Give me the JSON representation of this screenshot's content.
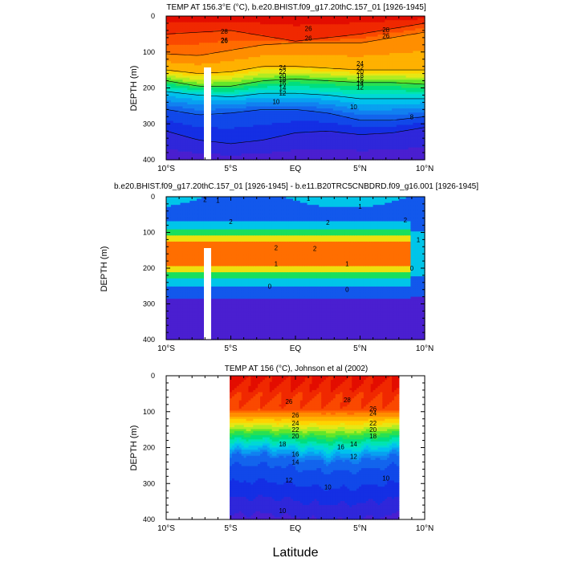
{
  "figure": {
    "shared_xlabel": "Latitude"
  },
  "colors": {
    "warm_top": "#e00000",
    "cold_bottom": "#4a1fd0",
    "diff_low": "#00f0e0",
    "diff_high": "#f59a3a",
    "background": "#ffffff"
  },
  "chart_data": [
    {
      "type": "contour",
      "title": "TEMP AT 156.3°E (°C), b.e20.BHIST.f09_g17.20thC.157_01 [1926-1945]",
      "xlabel": "",
      "ylabel": "DEPTH (m)",
      "xlim": [
        -10,
        10
      ],
      "ylim": [
        0,
        400
      ],
      "x_ticks": [
        -10,
        -5,
        0,
        5,
        10
      ],
      "x_tick_labels": [
        "10°S",
        "5°S",
        "EQ",
        "5°N",
        "10°N"
      ],
      "y_ticks": [
        0,
        100,
        200,
        300,
        400
      ],
      "y_tick_labels": [
        "0",
        "100",
        "200",
        "300",
        "400"
      ],
      "contour_interval": 1,
      "value_range": [
        8,
        29.5
      ],
      "lat_samples": [
        -10,
        -7.5,
        -5,
        -2.5,
        0,
        2.5,
        5,
        7.5,
        10
      ],
      "isotherm_depths": {
        "28": [
          50,
          45,
          40,
          55,
          70,
          60,
          50,
          35,
          20
        ],
        "26": [
          105,
          110,
          95,
          80,
          75,
          75,
          75,
          60,
          45
        ],
        "24": [
          150,
          160,
          155,
          140,
          140,
          145,
          150,
          150,
          150
        ],
        "20": [
          180,
          195,
          195,
          180,
          175,
          180,
          185,
          185,
          190
        ],
        "16": [
          210,
          220,
          225,
          215,
          215,
          220,
          230,
          230,
          230
        ],
        "12": [
          260,
          275,
          270,
          260,
          260,
          270,
          290,
          290,
          280
        ],
        "10": [
          320,
          345,
          355,
          345,
          325,
          320,
          330,
          325,
          310
        ]
      },
      "contour_labels": [
        {
          "text": "28",
          "lat": -5.5,
          "depth": 42
        },
        {
          "text": "26",
          "lat": 1,
          "depth": 35
        },
        {
          "text": "28",
          "lat": 7,
          "depth": 38
        },
        {
          "text": "26",
          "lat": -5.5,
          "depth": 67
        },
        {
          "text": "26",
          "lat": 1,
          "depth": 62
        },
        {
          "text": "26",
          "lat": 7,
          "depth": 55
        },
        {
          "text": "26",
          "lat": -5.5,
          "depth": 68
        },
        {
          "text": "24",
          "lat": -1,
          "depth": 143
        },
        {
          "text": "22",
          "lat": -1,
          "depth": 154
        },
        {
          "text": "20",
          "lat": -1,
          "depth": 165
        },
        {
          "text": "18",
          "lat": -1,
          "depth": 176
        },
        {
          "text": "16",
          "lat": -1,
          "depth": 187
        },
        {
          "text": "14",
          "lat": -1,
          "depth": 200
        },
        {
          "text": "12",
          "lat": -1,
          "depth": 214
        },
        {
          "text": "10",
          "lat": -1.5,
          "depth": 238
        },
        {
          "text": "24",
          "lat": 5,
          "depth": 132
        },
        {
          "text": "22",
          "lat": 5,
          "depth": 143
        },
        {
          "text": "20",
          "lat": 5,
          "depth": 154
        },
        {
          "text": "18",
          "lat": 5,
          "depth": 165
        },
        {
          "text": "16",
          "lat": 5,
          "depth": 176
        },
        {
          "text": "14",
          "lat": 5,
          "depth": 187
        },
        {
          "text": "12",
          "lat": 5,
          "depth": 198
        },
        {
          "text": "10",
          "lat": 4.5,
          "depth": 253
        },
        {
          "text": "8",
          "lat": 9,
          "depth": 280
        }
      ]
    },
    {
      "type": "contour",
      "title": "b.e20.BHIST.f09_g17.20thC.157_01 [1926-1945] - b.e11.B20TRC5CNBDRD.f09_g16.001 [1926-1945]",
      "xlabel": "",
      "ylabel": "DEPTH (m)",
      "xlim": [
        -10,
        10
      ],
      "ylim": [
        0,
        400
      ],
      "x_ticks": [
        -10,
        -5,
        0,
        5,
        10
      ],
      "x_tick_labels": [
        "10°S",
        "5°S",
        "EQ",
        "5°N",
        "10°N"
      ],
      "y_ticks": [
        0,
        100,
        200,
        300,
        400
      ],
      "y_tick_labels": [
        "0",
        "100",
        "200",
        "300",
        "400"
      ],
      "contour_interval": 0.5,
      "value_range": [
        -0.5,
        2.5
      ],
      "contour_labels": [
        {
          "text": "1",
          "lat": -6,
          "depth": 10
        },
        {
          "text": "2",
          "lat": -7,
          "depth": 8
        },
        {
          "text": "2",
          "lat": -5,
          "depth": 70
        },
        {
          "text": "1",
          "lat": 1,
          "depth": 4
        },
        {
          "text": "2",
          "lat": 2.5,
          "depth": 72
        },
        {
          "text": "1",
          "lat": 5,
          "depth": 27
        },
        {
          "text": "2",
          "lat": 8.5,
          "depth": 65
        },
        {
          "text": "1",
          "lat": 9.5,
          "depth": 120
        },
        {
          "text": "2",
          "lat": -1.5,
          "depth": 143
        },
        {
          "text": "2",
          "lat": 1.5,
          "depth": 145
        },
        {
          "text": "1",
          "lat": -1.5,
          "depth": 188
        },
        {
          "text": "1",
          "lat": 4,
          "depth": 188
        },
        {
          "text": "0",
          "lat": 9,
          "depth": 200
        },
        {
          "text": "0",
          "lat": -2,
          "depth": 250
        },
        {
          "text": "0",
          "lat": 4,
          "depth": 259
        }
      ]
    },
    {
      "type": "contour",
      "title": "TEMP AT 156 (°C), Johnson et al (2002)",
      "xlabel": "Latitude",
      "ylabel": "DEPTH (m)",
      "xlim": [
        -10,
        10
      ],
      "ylim": [
        0,
        400
      ],
      "data_lat_range": [
        -5,
        8
      ],
      "x_ticks": [
        -10,
        -5,
        0,
        5,
        10
      ],
      "x_tick_labels": [
        "10°S",
        "5°S",
        "EQ",
        "5°N",
        "10°N"
      ],
      "y_ticks": [
        0,
        100,
        200,
        300,
        400
      ],
      "y_tick_labels": [
        "0",
        "100",
        "200",
        "300",
        "400"
      ],
      "contour_interval": 1,
      "value_range": [
        8,
        29.5
      ],
      "contour_labels": [
        {
          "text": "26",
          "lat": -0.5,
          "depth": 72
        },
        {
          "text": "28",
          "lat": 4,
          "depth": 67
        },
        {
          "text": "26",
          "lat": 0,
          "depth": 110
        },
        {
          "text": "24",
          "lat": 0,
          "depth": 132
        },
        {
          "text": "22",
          "lat": 0,
          "depth": 150
        },
        {
          "text": "20",
          "lat": 0,
          "depth": 168
        },
        {
          "text": "18",
          "lat": -1,
          "depth": 190
        },
        {
          "text": "16",
          "lat": 0,
          "depth": 218
        },
        {
          "text": "14",
          "lat": 0,
          "depth": 240
        },
        {
          "text": "12",
          "lat": 4.5,
          "depth": 225
        },
        {
          "text": "12",
          "lat": -0.5,
          "depth": 290
        },
        {
          "text": "10",
          "lat": 2.5,
          "depth": 310
        },
        {
          "text": "10",
          "lat": -1,
          "depth": 375
        },
        {
          "text": "10",
          "lat": 7,
          "depth": 285
        },
        {
          "text": "26",
          "lat": 6,
          "depth": 92
        },
        {
          "text": "22",
          "lat": 6,
          "depth": 132
        },
        {
          "text": "20",
          "lat": 6,
          "depth": 150
        },
        {
          "text": "18",
          "lat": 6,
          "depth": 168
        },
        {
          "text": "16",
          "lat": 3.5,
          "depth": 198
        },
        {
          "text": "14",
          "lat": 4.5,
          "depth": 190
        },
        {
          "text": "24",
          "lat": 6,
          "depth": 104
        }
      ]
    }
  ]
}
